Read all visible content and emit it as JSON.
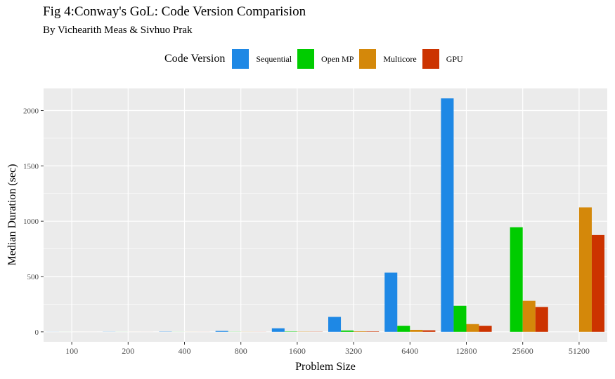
{
  "chart_data": {
    "type": "bar",
    "title": "Fig 4:Conway's GoL: Code Version Comparision",
    "subtitle": "By Vichearith Meas & Sivhuo Prak",
    "xlabel": "Problem Size",
    "ylabel": "Median Duration (sec)",
    "legend_title": "Code Version",
    "legend_position": "top",
    "grid": true,
    "ylim": [
      -90,
      2200
    ],
    "yticks": [
      0,
      500,
      1000,
      1500,
      2000
    ],
    "categories": [
      "100",
      "200",
      "400",
      "800",
      "1600",
      "3200",
      "6400",
      "12800",
      "25600",
      "51200"
    ],
    "series": [
      {
        "name": "Sequential",
        "color": "#1e88e5",
        "values": [
          0.5,
          1,
          2,
          8,
          32,
          135,
          535,
          2110,
          null,
          null
        ]
      },
      {
        "name": "Open MP",
        "color": "#00cc00",
        "values": [
          0.2,
          0.3,
          0.5,
          1,
          3,
          12,
          55,
          235,
          945,
          null
        ]
      },
      {
        "name": "Multicore",
        "color": "#d4880a",
        "values": [
          0.1,
          0.2,
          0.4,
          0.8,
          2,
          5,
          18,
          70,
          280,
          1125
        ]
      },
      {
        "name": "GPU",
        "color": "#cc3300",
        "values": [
          0.1,
          0.2,
          0.3,
          0.6,
          1.5,
          4,
          14,
          55,
          225,
          875
        ]
      }
    ]
  }
}
